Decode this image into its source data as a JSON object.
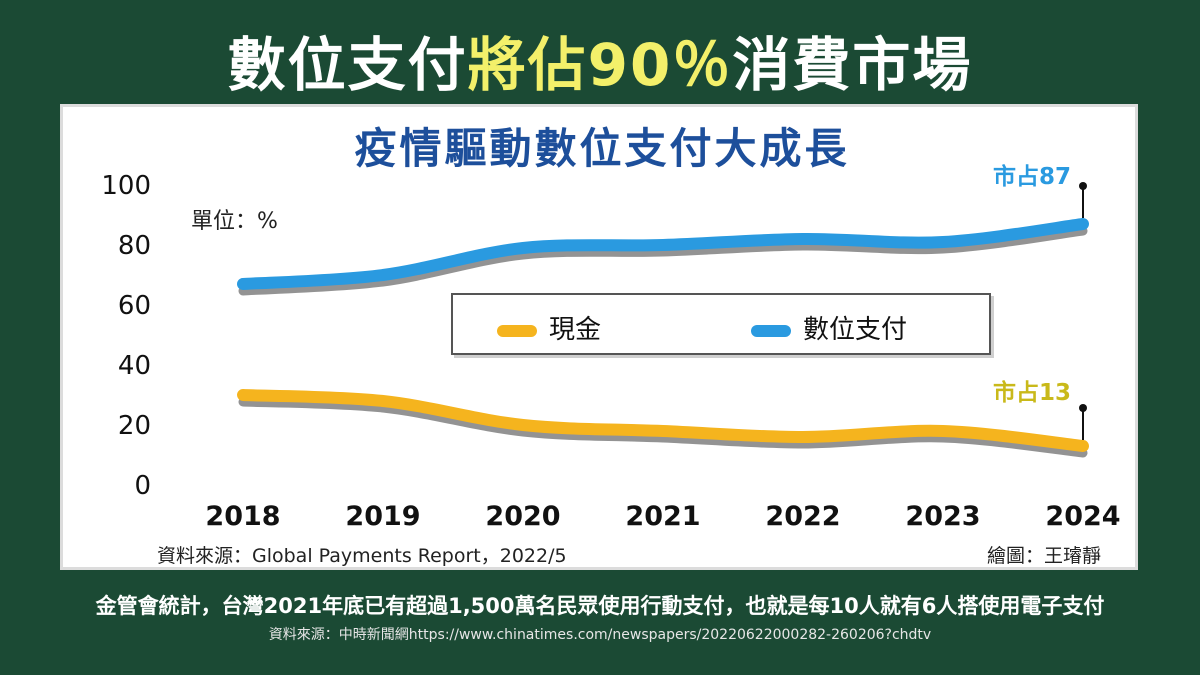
{
  "headline": {
    "part1": "數位支付",
    "highlight": "將佔90％",
    "part2": "消費市場"
  },
  "footer": {
    "main": "金管會統計，台灣2021年底已有超過1,500萬名民眾使用行動支付，也就是每10人就有6人搭使用電子支付",
    "source": "資料來源：中時新聞網https://www.chinatimes.com/newspapers/20220622000282-260206?chdtv"
  },
  "colors": {
    "background": "#1b4a34",
    "cash": "#f5b41e",
    "digital": "#2a9ae0",
    "title": "#1d4f9b",
    "headline_highlight": "#f3f06a"
  },
  "chart_data": {
    "type": "line",
    "title": "疫情驅動數位支付大成長",
    "unit_label": "單位：%",
    "categories": [
      "2018",
      "2019",
      "2020",
      "2021",
      "2022",
      "2023",
      "2024"
    ],
    "y_ticks": [
      "100",
      "80",
      "60",
      "40",
      "20",
      "0"
    ],
    "ylim": [
      0,
      100
    ],
    "grid": false,
    "legend_position": "center",
    "series": [
      {
        "name": "現金",
        "color": "#f5b41e",
        "values": [
          30,
          28,
          20,
          18,
          16,
          18,
          13
        ]
      },
      {
        "name": "數位支付",
        "color": "#2a9ae0",
        "values": [
          67,
          70,
          79,
          80,
          82,
          81,
          87
        ]
      }
    ],
    "annotations": [
      {
        "text": "市占87",
        "series": "數位支付",
        "category": "2024",
        "value": 87
      },
      {
        "text": "市占13",
        "series": "現金",
        "category": "2024",
        "value": 13
      }
    ],
    "source_left": "資料來源：Global Payments Report，2022/5",
    "source_right": "繪圖：王璿靜"
  }
}
